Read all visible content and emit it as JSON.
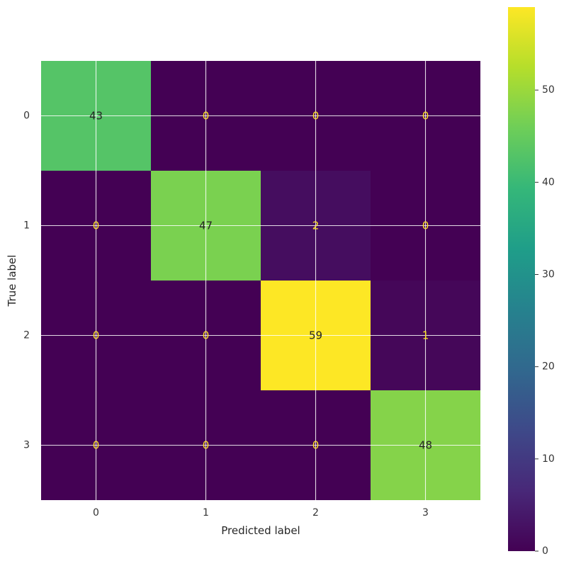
{
  "chart_data": {
    "type": "heatmap",
    "title": "",
    "xlabel": "Predicted label",
    "ylabel": "True label",
    "x_categories": [
      "0",
      "1",
      "2",
      "3"
    ],
    "y_categories": [
      "0",
      "1",
      "2",
      "3"
    ],
    "values": [
      [
        43,
        0,
        0,
        0
      ],
      [
        0,
        47,
        2,
        0
      ],
      [
        0,
        0,
        59,
        1
      ],
      [
        0,
        0,
        0,
        48
      ]
    ],
    "colormap": "viridis",
    "color_range": [
      0,
      59
    ],
    "colorbar_ticks": [
      0,
      10,
      20,
      30,
      40,
      50
    ],
    "grid": true,
    "text_color_low": "#fde725",
    "text_color_high": "#262626"
  }
}
